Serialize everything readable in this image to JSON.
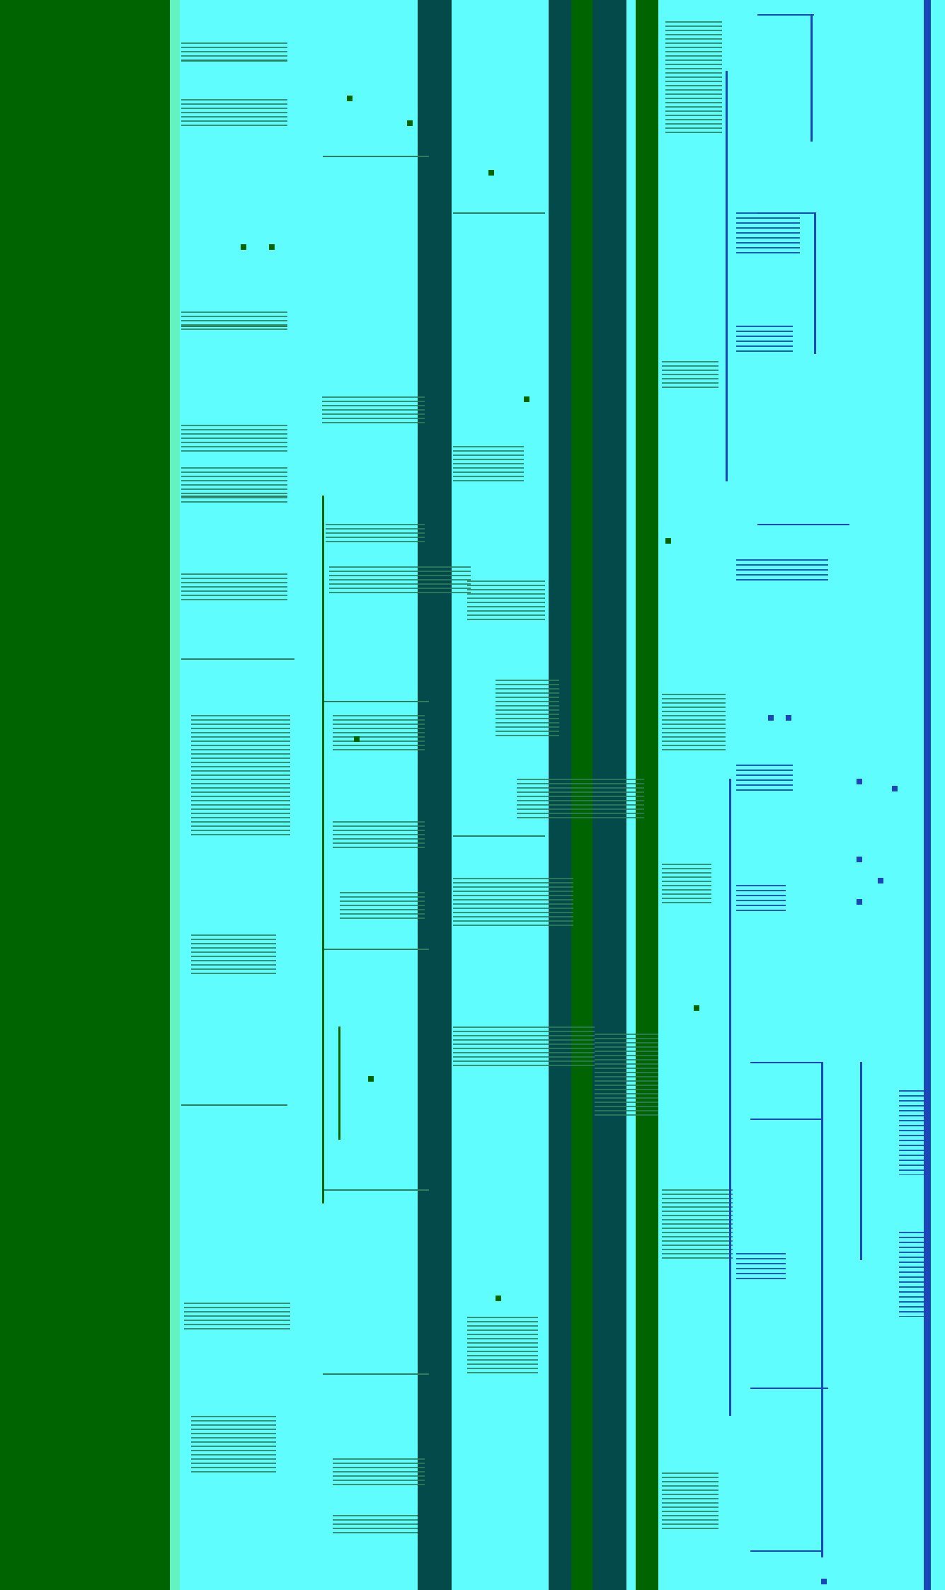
{
  "palette": {
    "background": "#5ffdfd",
    "dark_green": "#006400",
    "teal": "#054a4a",
    "mid_green": "#2f7d5a",
    "blue": "#1a46b8",
    "edge": "#63f3c0"
  }
}
